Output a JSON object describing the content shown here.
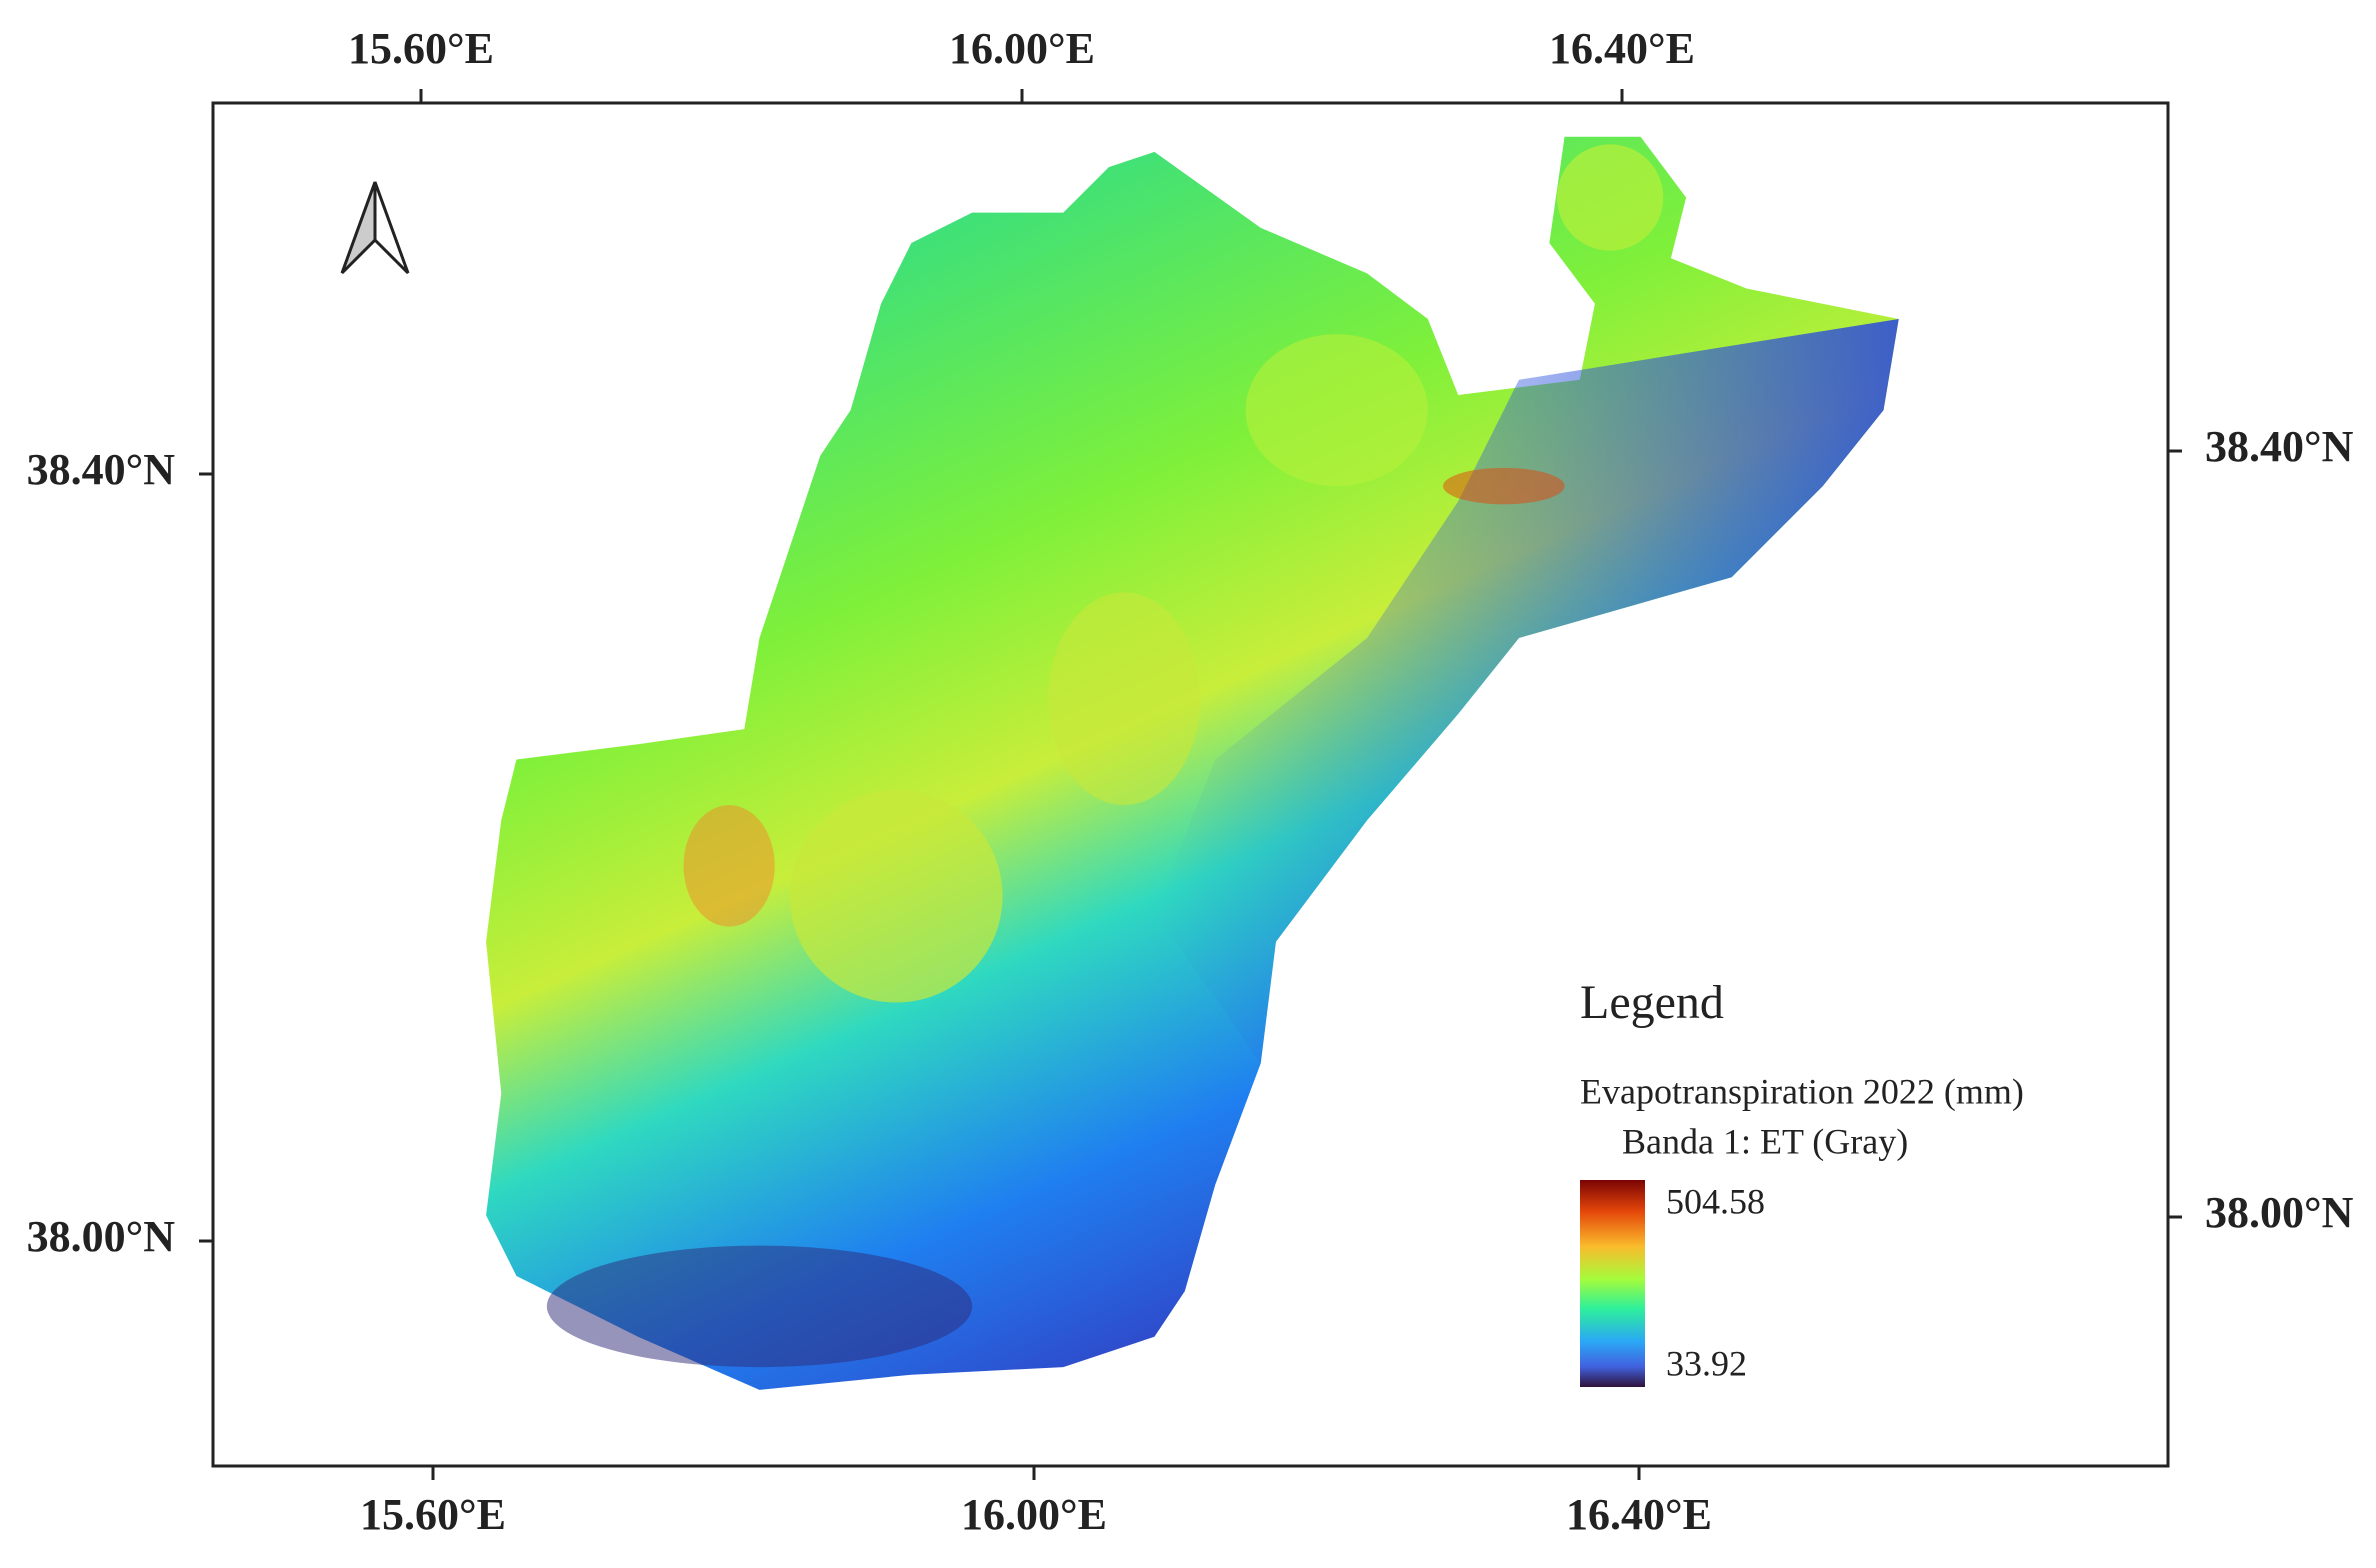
{
  "map": {
    "top_ticks": [
      "15.60°E",
      "16.00°E",
      "16.40°E"
    ],
    "bottom_ticks": [
      "15.60°E",
      "16.00°E",
      "16.40°E"
    ],
    "left_ticks": [
      "38.40°N",
      "38.00°N"
    ],
    "right_ticks": [
      "38.40°N",
      "38.00°N"
    ],
    "legend": {
      "title": "Legend",
      "layer": "Evapotranspiration 2022 (mm)",
      "band": "Banda 1: ET (Gray)",
      "max": "504.58",
      "min": "33.92"
    }
  }
}
